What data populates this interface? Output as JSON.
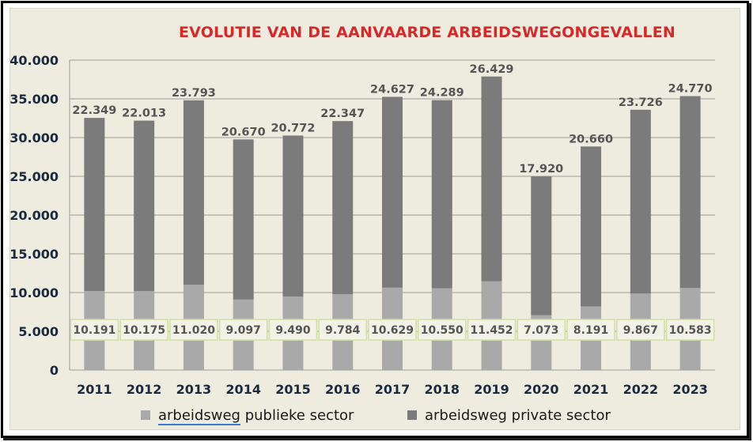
{
  "chart_data": {
    "type": "bar",
    "stacked": true,
    "title": "EVOLUTIE VAN DE AANVAARDE ARBEIDSWEGONGEVALLEN",
    "categories": [
      "2011",
      "2012",
      "2013",
      "2014",
      "2015",
      "2016",
      "2017",
      "2018",
      "2019",
      "2020",
      "2021",
      "2022",
      "2023"
    ],
    "series": [
      {
        "name": "arbeidsweg publieke sector",
        "values": [
          10191,
          10175,
          11020,
          9097,
          9490,
          9784,
          10629,
          10550,
          11452,
          7073,
          8191,
          9867,
          10583
        ],
        "labels": [
          "10.191",
          "10.175",
          "11.020",
          "9.097",
          "9.490",
          "9.784",
          "10.629",
          "10.550",
          "11.452",
          "7.073",
          "8.191",
          "9.867",
          "10.583"
        ],
        "color": "#a9a9a9"
      },
      {
        "name": "arbeidsweg private sector",
        "values": [
          22349,
          22013,
          23793,
          20670,
          20772,
          22347,
          24627,
          24289,
          26429,
          17920,
          20660,
          23726,
          24770
        ],
        "labels": [
          "22.349",
          "22.013",
          "23.793",
          "20.670",
          "20.772",
          "22.347",
          "24.627",
          "24.289",
          "26.429",
          "17.920",
          "20.660",
          "23.726",
          "24.770"
        ],
        "color": "#7b7b7b"
      }
    ],
    "ylim": [
      0,
      40000
    ],
    "yticks": [
      0,
      5000,
      10000,
      15000,
      20000,
      25000,
      30000,
      35000,
      40000
    ],
    "ytick_labels": [
      "0",
      "5.000",
      "10.000",
      "15.000",
      "20.000",
      "25.000",
      "30.000",
      "35.000",
      "40.000"
    ],
    "grid": "horizontal",
    "legend_position": "bottom"
  },
  "legend": {
    "public_first_word": "arbeidsweg",
    "public_rest": " publieke sector",
    "private_label": "arbeidsweg private sector"
  },
  "colors": {
    "title": "#d6292a",
    "background": "#eeecdf",
    "grid": "#9b9b9b"
  }
}
